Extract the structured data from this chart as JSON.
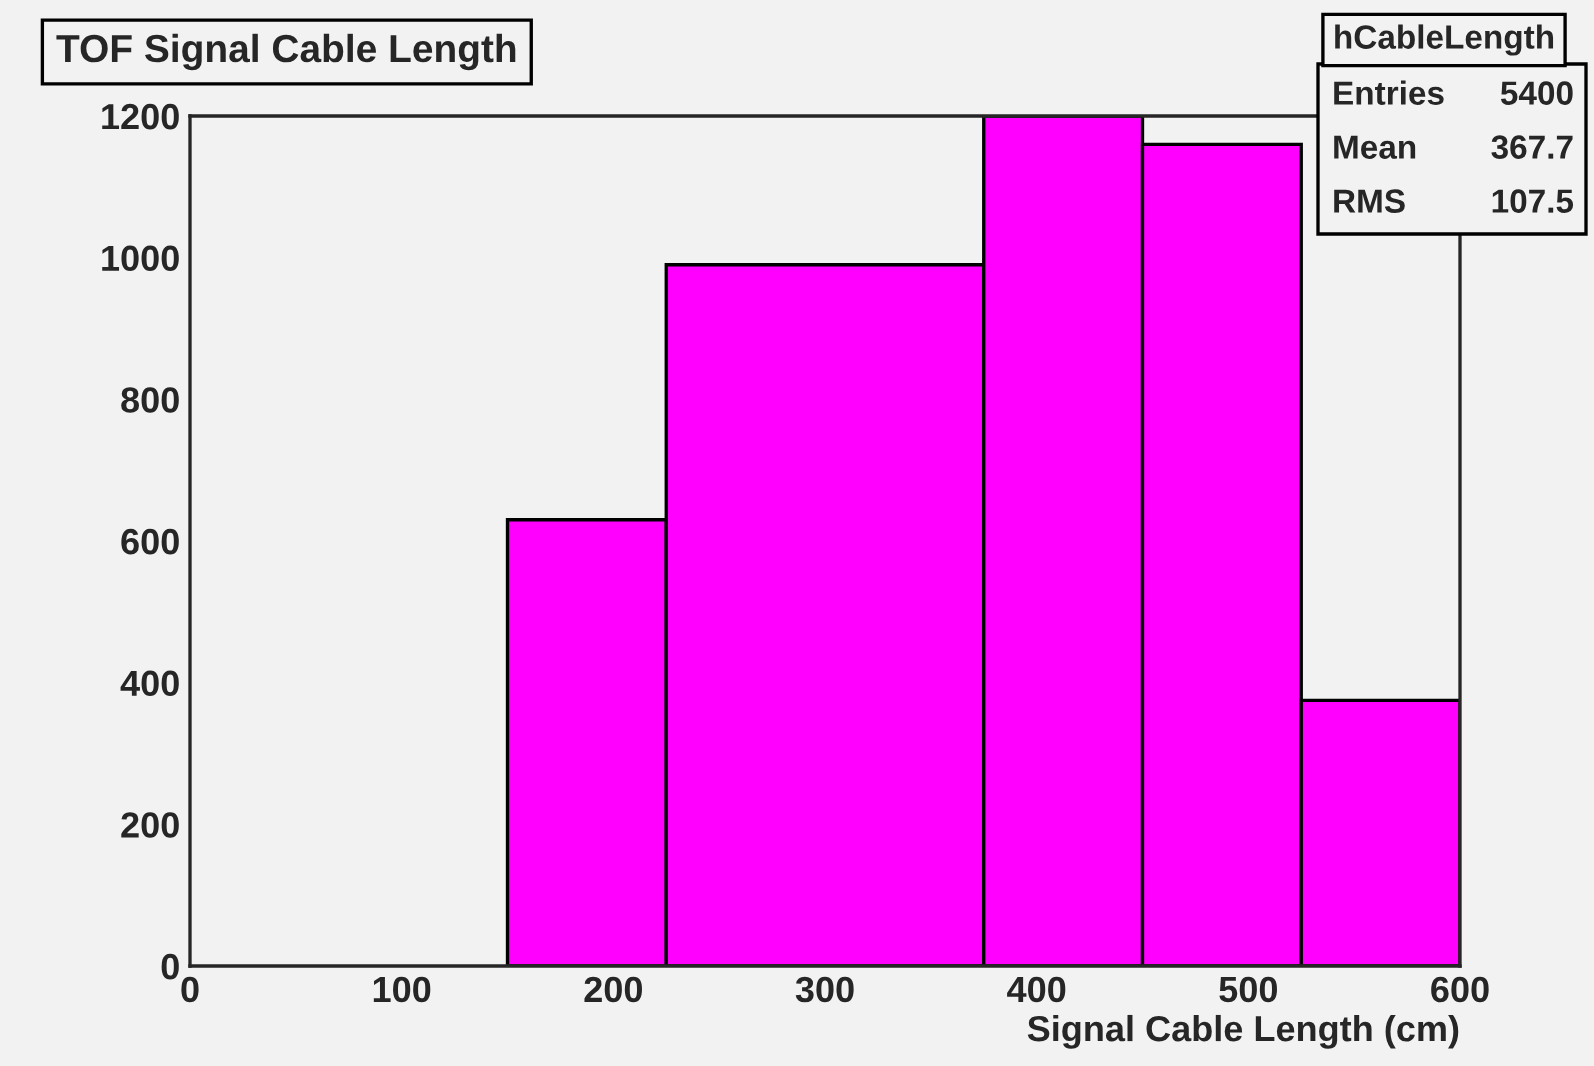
{
  "chart_data": {
    "type": "histogram",
    "title": "TOF Signal Cable Length",
    "xlabel": "Signal Cable Length (cm)",
    "bins": [
      150,
      225,
      375,
      450,
      525,
      600
    ],
    "values": [
      630,
      990,
      1200,
      1160,
      375
    ],
    "color": "#ff00ff",
    "xlim": [
      0,
      600
    ],
    "xticks": [
      0,
      100,
      200,
      300,
      400,
      500,
      600
    ],
    "ylim": [
      0,
      1200
    ],
    "yticks": [
      0,
      200,
      400,
      600,
      800,
      1000,
      1200
    ],
    "grid": false,
    "annotations": [
      "hCableLength",
      "Entries  5400",
      "Mean   367.7",
      "RMS    107.5"
    ]
  }
}
